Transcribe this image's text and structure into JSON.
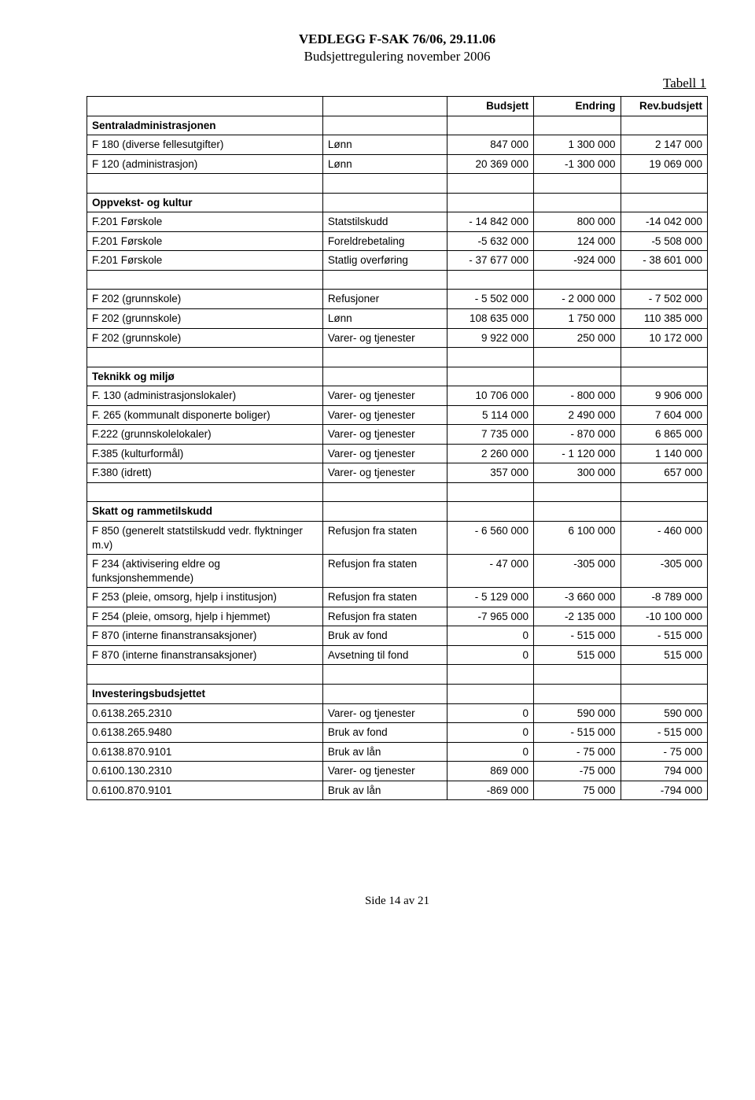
{
  "doc": {
    "title": "VEDLEGG F-SAK 76/06, 29.11.06",
    "subtitle": "Budsjettregulering november 2006",
    "table_label": "Tabell 1"
  },
  "table": {
    "headers": [
      "",
      "",
      "Budsjett",
      "Endring",
      "Rev.budsjett"
    ],
    "rows": [
      {
        "type": "section",
        "a": "Sentraladministrasjonen"
      },
      {
        "a": "F 180 (diverse fellesutgifter)",
        "b": "Lønn",
        "c": "847 000",
        "d": "1 300 000",
        "e": "2 147 000"
      },
      {
        "a": "F 120 (administrasjon)",
        "b": "Lønn",
        "c": "20 369 000",
        "d": "-1 300 000",
        "e": "19 069 000"
      },
      {
        "type": "blank"
      },
      {
        "type": "section",
        "a": "Oppvekst- og kultur"
      },
      {
        "a": "F.201 Førskole",
        "b": "Statstilskudd",
        "c": "- 14 842 000",
        "d": "800 000",
        "e": "-14 042 000"
      },
      {
        "a": "F.201 Førskole",
        "b": "Foreldrebetaling",
        "c": "-5 632 000",
        "d": "124 000",
        "e": "-5 508 000"
      },
      {
        "a": "F.201 Førskole",
        "b": "Statlig overføring",
        "c": "- 37 677 000",
        "d": "-924 000",
        "e": "- 38 601 000"
      },
      {
        "type": "blank"
      },
      {
        "a": "F 202 (grunnskole)",
        "b": "Refusjoner",
        "c": "- 5 502 000",
        "d": "- 2 000 000",
        "e": "- 7 502 000"
      },
      {
        "a": "F 202 (grunnskole)",
        "b": "Lønn",
        "c": "108 635 000",
        "d": "1 750 000",
        "e": "110 385 000"
      },
      {
        "a": "F 202 (grunnskole)",
        "b": "Varer- og tjenester",
        "c": "9 922 000",
        "d": "250 000",
        "e": "10 172 000"
      },
      {
        "type": "blank"
      },
      {
        "type": "section",
        "a": "Teknikk og miljø"
      },
      {
        "a": "F. 130 (administrasjonslokaler)",
        "b": "Varer- og tjenester",
        "c": "10 706 000",
        "d": "- 800 000",
        "e": "9 906 000"
      },
      {
        "a": "F. 265 (kommunalt disponerte boliger)",
        "b": "Varer- og tjenester",
        "c": "5 114 000",
        "d": "2 490 000",
        "e": "7 604 000"
      },
      {
        "a": "F.222 (grunnskolelokaler)",
        "b": "Varer- og tjenester",
        "c": "7 735 000",
        "d": "- 870 000",
        "e": "6 865 000"
      },
      {
        "a": "F.385 (kulturformål)",
        "b": "Varer- og tjenester",
        "c": "2 260 000",
        "d": "- 1 120 000",
        "e": "1 140 000"
      },
      {
        "a": "F.380 (idrett)",
        "b": "Varer- og tjenester",
        "c": "357 000",
        "d": "300 000",
        "e": "657 000"
      },
      {
        "type": "blank"
      },
      {
        "type": "section",
        "a": "Skatt og rammetilskudd"
      },
      {
        "a": "F 850 (generelt statstilskudd vedr. flyktninger m.v)",
        "b": "Refusjon fra staten",
        "c": "- 6 560 000",
        "d": "6 100 000",
        "e": "- 460 000"
      },
      {
        "a": "F 234 (aktivisering eldre og funksjonshemmende)",
        "b": "Refusjon fra staten",
        "c": "- 47 000",
        "d": "-305 000",
        "e": "-305 000"
      },
      {
        "a": "F 253 (pleie, omsorg, hjelp i institusjon)",
        "b": "Refusjon fra staten",
        "c": "- 5 129 000",
        "d": "-3 660 000",
        "e": "-8 789 000"
      },
      {
        "a": "F 254 (pleie, omsorg, hjelp i hjemmet)",
        "b": "Refusjon fra staten",
        "c": "-7 965 000",
        "d": "-2 135 000",
        "e": "-10 100 000"
      },
      {
        "a": "F 870 (interne finanstransaksjoner)",
        "b": "Bruk av fond",
        "c": "0",
        "d": "- 515 000",
        "e": "- 515 000"
      },
      {
        "a": "F 870 (interne finanstransaksjoner)",
        "b": "Avsetning til fond",
        "c": "0",
        "d": "515 000",
        "e": "515 000"
      },
      {
        "type": "blank"
      },
      {
        "type": "section",
        "a": "Investeringsbudsjettet"
      },
      {
        "a": "0.6138.265.2310",
        "b": "Varer- og tjenester",
        "c": "0",
        "d": "590 000",
        "e": "590 000"
      },
      {
        "a": "0.6138.265.9480",
        "b": "Bruk av fond",
        "c": "0",
        "d": "- 515 000",
        "e": "- 515 000"
      },
      {
        "a": "0.6138.870.9101",
        "b": "Bruk av lån",
        "c": "0",
        "d": "- 75 000",
        "e": "- 75 000"
      },
      {
        "a": "0.6100.130.2310",
        "b": "Varer- og tjenester",
        "c": "869 000",
        "d": "-75 000",
        "e": "794 000"
      },
      {
        "a": "0.6100.870.9101",
        "b": "Bruk av lån",
        "c": "-869 000",
        "d": "75 000",
        "e": "-794 000"
      }
    ]
  },
  "footer": "Side 14 av 21"
}
